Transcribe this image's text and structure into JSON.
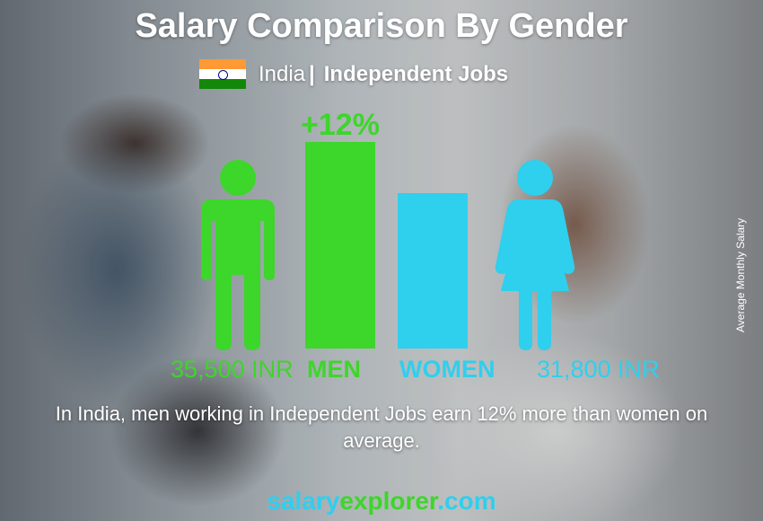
{
  "title": "Salary Comparison By Gender",
  "country": "India",
  "separator": "|",
  "job": "Independent Jobs",
  "difference_label": "+12%",
  "y_axis_label": "Average Monthly Salary",
  "description": "In India, men working in Independent Jobs earn 12% more than women on average.",
  "brand": {
    "part1": "salary",
    "part2": "explorer",
    "part3": ".com"
  },
  "colors": {
    "men": "#3dd62a",
    "women": "#2fcfee",
    "flag": [
      "#FF9933",
      "#FFFFFF",
      "#138808"
    ]
  },
  "chart_data": {
    "type": "bar",
    "categories": [
      "MEN",
      "WOMEN"
    ],
    "values": [
      35500,
      31800
    ],
    "value_labels": [
      "35,500 INR",
      "31,800 INR"
    ],
    "unit": "INR",
    "ylabel": "Average Monthly Salary",
    "title": "Salary Comparison By Gender"
  }
}
